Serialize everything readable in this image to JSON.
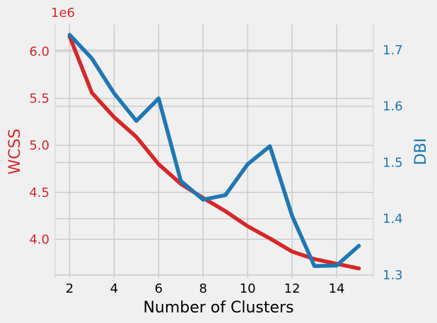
{
  "chart_data": {
    "type": "line",
    "title": "",
    "xlabel": "Number of Clusters",
    "x": [
      2,
      3,
      4,
      5,
      6,
      7,
      8,
      9,
      10,
      11,
      12,
      13,
      14,
      15
    ],
    "x_ticks": [
      "2",
      "4",
      "6",
      "8",
      "10",
      "12",
      "14"
    ],
    "x_tick_values": [
      2,
      4,
      6,
      8,
      10,
      12,
      14
    ],
    "xlim": [
      1.35,
      15.65
    ],
    "grid": true,
    "series": [
      {
        "name": "WCSS",
        "axis": "left",
        "color": "#d62728",
        "values": [
          6160000,
          5560000,
          5300000,
          5090000,
          4800000,
          4590000,
          4440000,
          4300000,
          4140000,
          4010000,
          3870000,
          3790000,
          3740000,
          3690000
        ]
      },
      {
        "name": "DBI",
        "axis": "right",
        "color": "#1f77b4",
        "values": [
          1.727,
          1.685,
          1.623,
          1.574,
          1.614,
          1.467,
          1.434,
          1.442,
          1.497,
          1.529,
          1.405,
          1.316,
          1.317,
          1.352
        ]
      }
    ],
    "y_left": {
      "label": "WCSS",
      "multiplier": "1e6",
      "ticks": [
        "4.0",
        "4.5",
        "5.0",
        "5.5",
        "6.0"
      ],
      "tick_values": [
        4000000,
        4500000,
        5000000,
        5500000,
        6000000
      ],
      "ylim": [
        3590000,
        6285000
      ],
      "color": "#d62728"
    },
    "y_right": {
      "label": "DBI",
      "ticks": [
        "1.3",
        "1.4",
        "1.5",
        "1.6",
        "1.7"
      ],
      "tick_values": [
        1.3,
        1.4,
        1.5,
        1.6,
        1.7
      ],
      "ylim": [
        1.295,
        1.745
      ],
      "color": "#1f77b4"
    }
  }
}
